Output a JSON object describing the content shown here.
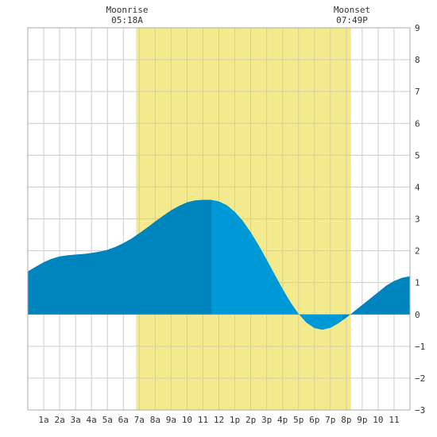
{
  "chart_data": {
    "type": "area",
    "x_unit": "hour",
    "xlim": [
      0,
      24
    ],
    "ylim": [
      -3,
      9
    ],
    "yticks": [
      -3,
      -2,
      -1,
      0,
      1,
      2,
      3,
      4,
      5,
      6,
      7,
      8,
      9
    ],
    "xtick_labels": [
      "1a",
      "2a",
      "3a",
      "4a",
      "5a",
      "6a",
      "7a",
      "8a",
      "9a",
      "10",
      "11",
      "12",
      "1p",
      "2p",
      "3p",
      "4p",
      "5p",
      "6p",
      "7p",
      "8p",
      "9p",
      "10",
      "11"
    ],
    "grid": true,
    "annotations": [
      {
        "label": "Moonrise",
        "time": "05:18A",
        "hour": 5.3
      },
      {
        "label": "Moonset",
        "time": "07:49P",
        "hour": 19.82
      }
    ],
    "moon_period": [
      6.8,
      20.3
    ],
    "split_hours": [
      11.55,
      19.75
    ],
    "series": [
      {
        "x": [
          0,
          0.5,
          1,
          1.5,
          2,
          2.5,
          3,
          3.5,
          4,
          4.5,
          5,
          5.5,
          6,
          6.5,
          7,
          7.5,
          8,
          8.5,
          9,
          9.5,
          10,
          10.5,
          11,
          11.5,
          12,
          12.5,
          13,
          13.5,
          14,
          14.5,
          15,
          15.5,
          16,
          16.5,
          17,
          17.5,
          18,
          18.5,
          19,
          19.5,
          20,
          20.5,
          21,
          21.5,
          22,
          22.5,
          23,
          23.5,
          24
        ],
        "values": [
          1.35,
          1.5,
          1.64,
          1.75,
          1.82,
          1.86,
          1.88,
          1.9,
          1.93,
          1.97,
          2.03,
          2.12,
          2.24,
          2.38,
          2.55,
          2.73,
          2.92,
          3.1,
          3.27,
          3.41,
          3.52,
          3.58,
          3.6,
          3.6,
          3.55,
          3.43,
          3.22,
          2.94,
          2.58,
          2.17,
          1.72,
          1.26,
          0.8,
          0.38,
          0.02,
          -0.26,
          -0.43,
          -0.48,
          -0.42,
          -0.28,
          -0.1,
          0.1,
          0.3,
          0.5,
          0.7,
          0.9,
          1.05,
          1.15,
          1.2
        ]
      }
    ],
    "colors": {
      "moon_band": "#f3ea8e",
      "tide_dark": "#0084be",
      "tide_light": "#0099d8",
      "grid": "#cccccc",
      "axis_text": "#333333"
    }
  }
}
